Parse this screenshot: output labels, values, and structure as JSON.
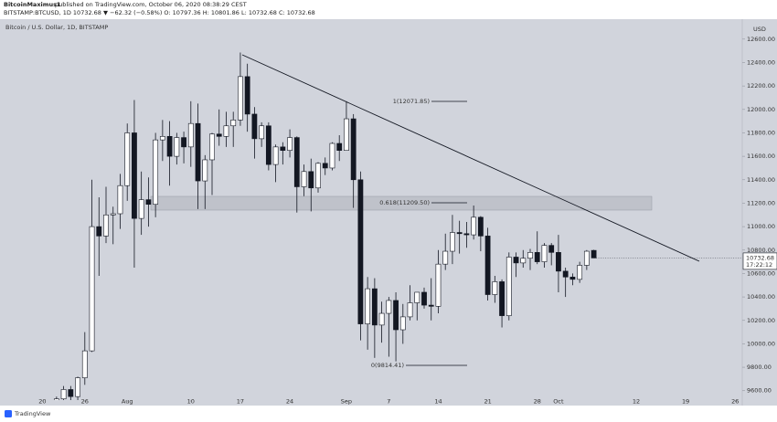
{
  "header": {
    "author": "BitcoinMaximus1",
    "published": "published on TradingView.com, October 06, 2020 08:38:29 CEST",
    "symbol_line": "BITSTAMP:BTCUSD, 1D 10732.68 ▼ −62.32 (−0.58%) O: 10797.36 H: 10801.86 L: 10732.68 C: 10732.68"
  },
  "footer": {
    "brand": "TradingView"
  },
  "chart_data": {
    "type": "candlestick",
    "title": "Bitcoin / U.S. Dollar, 1D, BITSTAMP",
    "y_unit": "USD",
    "x": [
      "2020-07-22",
      "2020-07-23",
      "2020-07-24",
      "2020-07-25",
      "2020-07-26",
      "2020-07-27",
      "2020-07-28",
      "2020-07-29",
      "2020-07-30",
      "2020-07-31",
      "2020-08-01",
      "2020-08-02",
      "2020-08-03",
      "2020-08-04",
      "2020-08-05",
      "2020-08-06",
      "2020-08-07",
      "2020-08-08",
      "2020-08-09",
      "2020-08-10",
      "2020-08-11",
      "2020-08-12",
      "2020-08-13",
      "2020-08-14",
      "2020-08-15",
      "2020-08-16",
      "2020-08-17",
      "2020-08-18",
      "2020-08-19",
      "2020-08-20",
      "2020-08-21",
      "2020-08-22",
      "2020-08-23",
      "2020-08-24",
      "2020-08-25",
      "2020-08-26",
      "2020-08-27",
      "2020-08-28",
      "2020-08-29",
      "2020-08-30",
      "2020-08-31",
      "2020-09-01",
      "2020-09-02",
      "2020-09-03",
      "2020-09-04",
      "2020-09-05",
      "2020-09-06",
      "2020-09-07",
      "2020-09-08",
      "2020-09-09",
      "2020-09-10",
      "2020-09-11",
      "2020-09-12",
      "2020-09-13",
      "2020-09-14",
      "2020-09-15",
      "2020-09-16",
      "2020-09-17",
      "2020-09-18",
      "2020-09-19",
      "2020-09-20",
      "2020-09-21",
      "2020-09-22",
      "2020-09-23",
      "2020-09-24",
      "2020-09-25",
      "2020-09-26",
      "2020-09-27",
      "2020-09-28",
      "2020-09-29",
      "2020-09-30",
      "2020-10-01",
      "2020-10-02",
      "2020-10-03",
      "2020-10-04",
      "2020-10-05",
      "2020-10-06"
    ],
    "open": [
      9390,
      9530,
      9610,
      9550,
      9710,
      9940,
      11000,
      10920,
      11100,
      11110,
      11350,
      11800,
      11070,
      11230,
      11190,
      11740,
      11770,
      11600,
      11760,
      11680,
      11880,
      11390,
      11570,
      11790,
      11770,
      11860,
      11910,
      12280,
      11960,
      11750,
      11860,
      11530,
      11680,
      11650,
      11760,
      11340,
      11470,
      11330,
      11540,
      11500,
      11710,
      11650,
      11920,
      11400,
      10170,
      10470,
      10160,
      10260,
      10370,
      10120,
      10230,
      10350,
      10440,
      10330,
      10320,
      10680,
      10790,
      10950,
      10940,
      10930,
      11080,
      10920,
      10420,
      10530,
      10240,
      10740,
      10690,
      10730,
      10780,
      10700,
      10840,
      10780,
      10620,
      10570,
      10550,
      10670,
      10797.36
    ],
    "high": [
      9550,
      9640,
      9640,
      9720,
      10100,
      11400,
      11250,
      11340,
      11170,
      11450,
      11880,
      12080,
      11470,
      11420,
      11800,
      11910,
      11900,
      11800,
      11810,
      12070,
      12050,
      11610,
      11800,
      12000,
      11980,
      11980,
      12486,
      12390,
      12020,
      11890,
      11890,
      11700,
      11720,
      11830,
      11770,
      11530,
      11580,
      11550,
      11590,
      11720,
      11780,
      12070,
      11960,
      11470,
      10570,
      10560,
      10360,
      10400,
      10440,
      10340,
      10500,
      10440,
      10480,
      10560,
      10800,
      10940,
      11100,
      11050,
      11040,
      11180,
      11090,
      10990,
      10580,
      10550,
      10780,
      10780,
      10800,
      10810,
      10960,
      10860,
      10860,
      10930,
      10650,
      10600,
      10700,
      10800,
      10801.86
    ],
    "low": [
      9280,
      9460,
      9500,
      9520,
      9650,
      9930,
      10580,
      10860,
      10850,
      10980,
      11220,
      10650,
      10930,
      11000,
      11080,
      11560,
      11350,
      11530,
      11540,
      11510,
      11150,
      11150,
      11270,
      11690,
      11680,
      11680,
      11860,
      11810,
      11580,
      11680,
      11480,
      11380,
      11530,
      11590,
      11120,
      11260,
      11130,
      11290,
      11440,
      11480,
      11560,
      11650,
      11160,
      10030,
      9950,
      9880,
      10010,
      9890,
      9850,
      10000,
      10200,
      10200,
      10300,
      10200,
      10260,
      10630,
      10680,
      10770,
      10820,
      10890,
      10790,
      10370,
      10350,
      10140,
      10200,
      10570,
      10650,
      10630,
      10680,
      10650,
      10670,
      10440,
      10400,
      10500,
      10520,
      10630,
      10732.68
    ],
    "close": [
      9530,
      9610,
      9550,
      9710,
      9940,
      11000,
      10920,
      11100,
      11110,
      11350,
      11800,
      11070,
      11230,
      11190,
      11740,
      11770,
      11600,
      11760,
      11680,
      11880,
      11390,
      11570,
      11790,
      11770,
      11860,
      11910,
      12280,
      11960,
      11750,
      11860,
      11530,
      11680,
      11650,
      11760,
      11340,
      11470,
      11330,
      11540,
      11500,
      11710,
      11650,
      11920,
      11400,
      10170,
      10470,
      10160,
      10260,
      10370,
      10120,
      10230,
      10350,
      10440,
      10330,
      10320,
      10680,
      10790,
      10950,
      10940,
      10930,
      11080,
      10920,
      10420,
      10530,
      10240,
      10740,
      10690,
      10730,
      10780,
      10700,
      10840,
      10780,
      10620,
      10570,
      10550,
      10670,
      10790,
      10732.68
    ],
    "up_color": "#ffffff",
    "down_color": "#131722",
    "xlim": [
      "2020-07-14",
      "2020-10-27"
    ],
    "xticks": [
      {
        "value": "2020-07-20",
        "label": "20"
      },
      {
        "value": "2020-07-26",
        "label": "26"
      },
      {
        "value": "2020-08-01",
        "label": "Aug"
      },
      {
        "value": "2020-08-10",
        "label": "10"
      },
      {
        "value": "2020-08-17",
        "label": "17"
      },
      {
        "value": "2020-08-24",
        "label": "24"
      },
      {
        "value": "2020-09-01",
        "label": "Sep"
      },
      {
        "value": "2020-09-07",
        "label": "7"
      },
      {
        "value": "2020-09-14",
        "label": "14"
      },
      {
        "value": "2020-09-21",
        "label": "21"
      },
      {
        "value": "2020-09-28",
        "label": "28"
      },
      {
        "value": "2020-10-01",
        "label": "Oct"
      },
      {
        "value": "2020-10-12",
        "label": "12"
      },
      {
        "value": "2020-10-19",
        "label": "19"
      },
      {
        "value": "2020-10-26",
        "label": "26"
      }
    ],
    "ylim": [
      9520,
      12770
    ],
    "yticks": [
      {
        "value": 9600,
        "label": "9600.00"
      },
      {
        "value": 9800,
        "label": "9800.00"
      },
      {
        "value": 10000,
        "label": "10000.00"
      },
      {
        "value": 10200,
        "label": "10200.00"
      },
      {
        "value": 10400,
        "label": "10400.00"
      },
      {
        "value": 10600,
        "label": "10600.00"
      },
      {
        "value": 10800,
        "label": "10800.00"
      },
      {
        "value": 11000,
        "label": "11000.00"
      },
      {
        "value": 11200,
        "label": "11200.00"
      },
      {
        "value": 11400,
        "label": "11400.00"
      },
      {
        "value": 11600,
        "label": "11600.00"
      },
      {
        "value": 11800,
        "label": "11800.00"
      },
      {
        "value": 12000,
        "label": "12000.00"
      },
      {
        "value": 12200,
        "label": "12200.00"
      },
      {
        "value": 12400,
        "label": "12400.00"
      },
      {
        "value": 12600,
        "label": "12600.00"
      }
    ],
    "annotations": {
      "fib_1": "1(12071.85)",
      "fib_0618": "0.618(11209.50)",
      "fib_0": "0(9814.41)",
      "countdown": "17:22:12"
    }
  }
}
